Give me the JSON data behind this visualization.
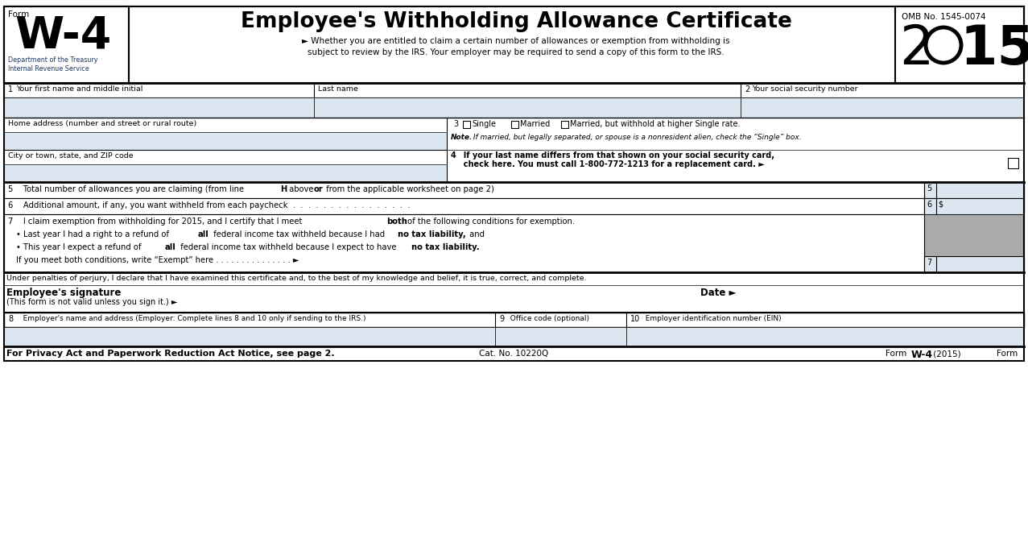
{
  "title": "Employee's Withholding Allowance Certificate",
  "form_label": "Form",
  "dept": "Department of the Treasury",
  "irs": "Internal Revenue Service",
  "omb": "OMB No. 1545-0074",
  "bg_color": "#ffffff",
  "light_blue": "#dce6f1",
  "gray_box": "#aaaaaa",
  "subtitle1": "► Whether you are entitled to claim a certain number of allowances or exemption from withholding is",
  "subtitle2": "subject to review by the IRS. Your employer may be required to send a copy of this form to the IRS.",
  "line5_text": "5    Total number of allowances you are claiming (from line ",
  "line5_bold": "H",
  "line5_text2": " above ",
  "line5_bold2": "or",
  "line5_text3": " from the applicable worksheet on page 2)",
  "line6_text": "6    Additional amount, if any, you want withheld from each paycheck  .  .  .  .  .  .  .  .  .  .  .  .  .  .  .  .",
  "penalty": "Under penalties of perjury, I declare that I have examined this certificate and, to the best of my knowledge and belief, it is true, correct, and complete.",
  "footer_left": "For Privacy Act and Paperwork Reduction Act Notice, see page 2.",
  "footer_mid": "Cat. No. 10220Q"
}
